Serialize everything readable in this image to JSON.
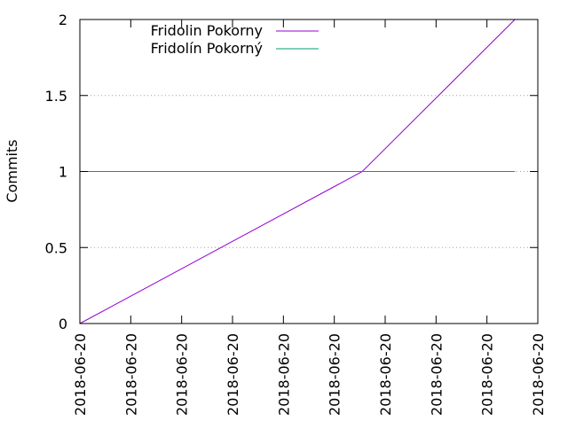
{
  "chart_data": {
    "type": "line",
    "title": "",
    "xlabel": "",
    "ylabel": "Commits",
    "ylim": [
      0,
      2
    ],
    "yticks": [
      0,
      0.5,
      1,
      1.5,
      2
    ],
    "ytick_labels": [
      "0",
      "0.5",
      "1",
      "1.5",
      "2"
    ],
    "xticks": [
      0,
      1,
      2,
      3,
      4,
      5,
      6,
      7,
      8,
      9
    ],
    "xtick_labels": [
      "2018-06-20",
      "2018-06-20",
      "2018-06-20",
      "2018-06-20",
      "2018-06-20",
      "2018-06-20",
      "2018-06-20",
      "2018-06-20",
      "2018-06-20",
      "2018-06-20"
    ],
    "xlim": [
      0,
      9
    ],
    "grid": {
      "y": true,
      "x": false
    },
    "legend_placement": "top-left",
    "series": [
      {
        "name": "Fridolin Pokorny",
        "color": "#9400d3",
        "points": [
          [
            0,
            0
          ],
          [
            5.55,
            1
          ],
          [
            8.55,
            2
          ]
        ]
      },
      {
        "name": "Fridolín Pokorný",
        "color": "#009e73",
        "points": [
          [
            0,
            1
          ],
          [
            8.55,
            1
          ]
        ]
      }
    ]
  }
}
